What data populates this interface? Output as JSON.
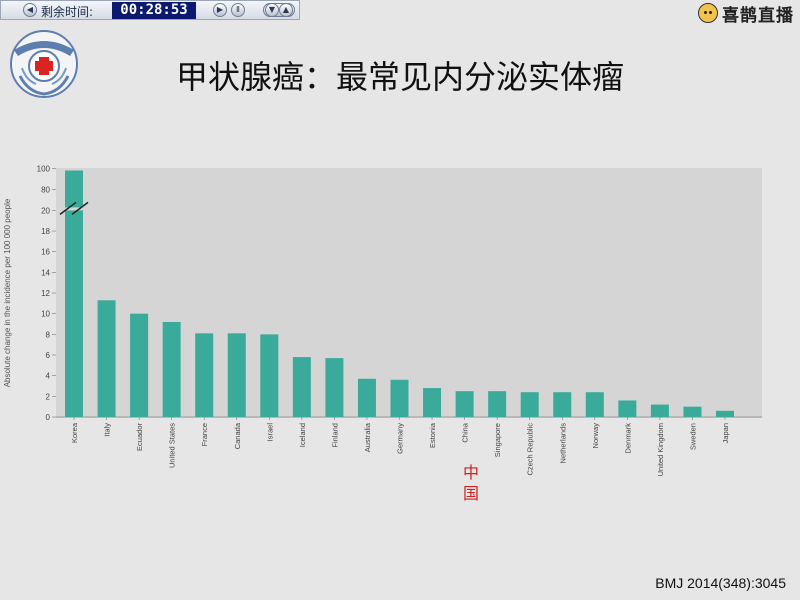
{
  "toolbar": {
    "label": "剩余时间:",
    "time": "00:28:53",
    "icons": [
      "prev-icon",
      "play-icon",
      "pause-icon",
      "dropdown-icon",
      "up-icon"
    ]
  },
  "brand": {
    "text": "喜鹊直播"
  },
  "slide": {
    "title": "甲状腺癌：最常见内分泌实体瘤",
    "china_label_cn": "中国",
    "citation": "BMJ 2014(348):3045"
  },
  "colors": {
    "bar": "#3aab9a",
    "plot_bg": "#d5d5d5",
    "slide_bg": "#e6e6e6",
    "accent_red": "#cc2222"
  },
  "chart_data": {
    "type": "bar",
    "ylabel": "Absolute change in the incidence per 100 000 people",
    "y_ticks": [
      "0",
      "2",
      "4",
      "6",
      "8",
      "10",
      "12",
      "14",
      "16",
      "18",
      "20",
      "80",
      "100"
    ],
    "broken_axis": true,
    "categories": [
      "Korea",
      "Italy",
      "Ecuador",
      "United States",
      "France",
      "Canada",
      "Israel",
      "Iceland",
      "Finland",
      "Australia",
      "Germany",
      "Estonia",
      "China",
      "Singapore",
      "Czech Republic",
      "Netherlands",
      "Norway",
      "Denmark",
      "United Kingdom",
      "Sweden",
      "Japan"
    ],
    "values": [
      98,
      11.3,
      10,
      9.2,
      8.1,
      8.1,
      8.0,
      5.8,
      5.7,
      3.7,
      3.6,
      2.8,
      2.5,
      2.5,
      2.4,
      2.4,
      2.4,
      1.6,
      1.2,
      1.0,
      0.6
    ]
  }
}
